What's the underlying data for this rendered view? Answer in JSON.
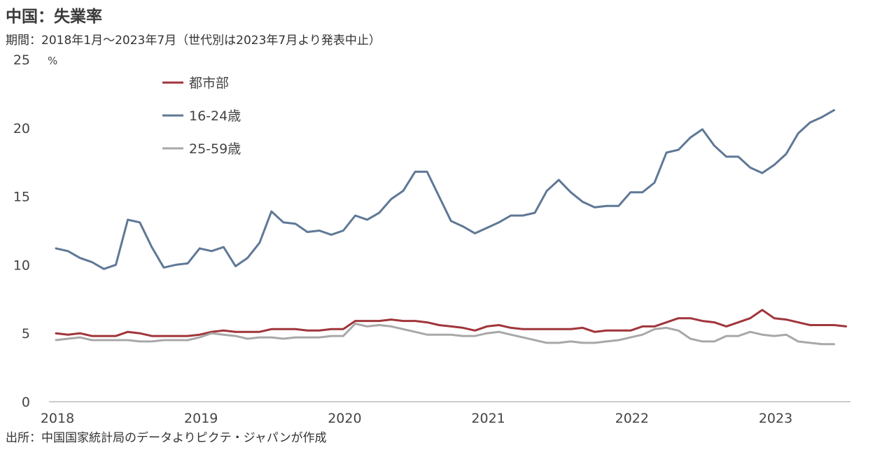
{
  "header": {
    "title": "中国：失業率",
    "subtitle": "期間：2018年1月～2023年7月（世代別は2023年7月より発表中止）"
  },
  "footer": {
    "source": "出所：中国国家統計局のデータよりピクテ・ジャパンが作成"
  },
  "chart_data": {
    "type": "line",
    "ylabel": "%",
    "ylim": [
      0,
      25
    ],
    "yticks": [
      "0",
      "5",
      "10",
      "15",
      "20",
      "25"
    ],
    "xticks": [
      "2018",
      "2019",
      "2020",
      "2021",
      "2022",
      "2023"
    ],
    "x_start": "2018-01",
    "grid": false,
    "legend_position": "top-left",
    "colors": {
      "urban": "#a0353b",
      "youth": "#5f7896",
      "adult": "#a8a8a8"
    },
    "series": [
      {
        "name": "都市部",
        "color": "#a0353b",
        "values": [
          5.0,
          4.9,
          5.0,
          4.8,
          4.8,
          4.8,
          5.1,
          5.0,
          4.8,
          4.8,
          4.8,
          4.8,
          4.9,
          5.1,
          5.2,
          5.1,
          5.1,
          5.1,
          5.3,
          5.3,
          5.3,
          5.2,
          5.2,
          5.3,
          5.3,
          5.9,
          5.9,
          5.9,
          6.0,
          5.9,
          5.9,
          5.8,
          5.6,
          5.5,
          5.4,
          5.2,
          5.5,
          5.6,
          5.4,
          5.3,
          5.3,
          5.3,
          5.3,
          5.3,
          5.4,
          5.1,
          5.2,
          5.2,
          5.2,
          5.5,
          5.5,
          5.8,
          6.1,
          6.1,
          5.9,
          5.8,
          5.5,
          5.8,
          6.1,
          6.7,
          6.1,
          6.0,
          5.8,
          5.6,
          5.6,
          5.6,
          5.5
        ]
      },
      {
        "name": "16-24歳",
        "color": "#5f7896",
        "values": [
          11.2,
          11.0,
          10.5,
          10.2,
          9.7,
          10.0,
          13.3,
          13.1,
          11.3,
          9.8,
          10.0,
          10.1,
          11.2,
          11.0,
          11.3,
          9.9,
          10.5,
          11.6,
          13.9,
          13.1,
          13.0,
          12.4,
          12.5,
          12.2,
          12.5,
          13.6,
          13.3,
          13.8,
          14.8,
          15.4,
          16.8,
          16.8,
          15.0,
          13.2,
          12.8,
          12.3,
          12.7,
          13.1,
          13.6,
          13.6,
          13.8,
          15.4,
          16.2,
          15.3,
          14.6,
          14.2,
          14.3,
          14.3,
          15.3,
          15.3,
          16.0,
          18.2,
          18.4,
          19.3,
          19.9,
          18.7,
          17.9,
          17.9,
          17.1,
          16.7,
          17.3,
          18.1,
          19.6,
          20.4,
          20.8,
          21.3,
          null
        ]
      },
      {
        "name": "25-59歳",
        "color": "#a8a8a8",
        "values": [
          4.5,
          4.6,
          4.7,
          4.5,
          4.5,
          4.5,
          4.5,
          4.4,
          4.4,
          4.5,
          4.5,
          4.5,
          4.7,
          5.0,
          4.9,
          4.8,
          4.6,
          4.7,
          4.7,
          4.6,
          4.7,
          4.7,
          4.7,
          4.8,
          4.8,
          5.7,
          5.5,
          5.6,
          5.5,
          5.3,
          5.1,
          4.9,
          4.9,
          4.9,
          4.8,
          4.8,
          5.0,
          5.1,
          4.9,
          4.7,
          4.5,
          4.3,
          4.3,
          4.4,
          4.3,
          4.3,
          4.4,
          4.5,
          4.7,
          4.9,
          5.3,
          5.4,
          5.2,
          4.6,
          4.4,
          4.4,
          4.8,
          4.8,
          5.1,
          4.9,
          4.8,
          4.9,
          4.4,
          4.3,
          4.2,
          4.2,
          null
        ]
      }
    ]
  }
}
